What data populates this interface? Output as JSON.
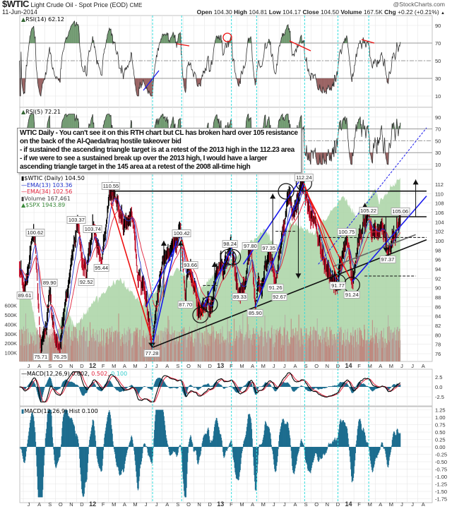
{
  "header": {
    "symbol": "$WTIC",
    "description": "Light Crude Oil - Spot Price (EOD)",
    "exchange": "CME",
    "date": "11-Jun-2014",
    "brand": "@StockCharts.com",
    "quote": {
      "open_label": "Open",
      "open": "104.30",
      "high_label": "High",
      "high": "104.81",
      "low_label": "Low",
      "low": "104.17",
      "close_label": "Close",
      "close": "104.50",
      "volume_label": "Volume",
      "volume": "167.5K",
      "chg_label": "Chg",
      "chg": "+0.22 (+0.21%)",
      "chg_icon": "up-triangle-icon"
    }
  },
  "annotation_note": [
    "WTIC Daily - You can't see it on this RTH chart but CL has broken hard over 105 resistance",
    "on the back of the Al-Qaeda/Iraq hostile takeover bid",
    "- if sustained the ascending triangle target is at a retest of the 2013 high in the 112.23 area",
    "- if we were to see a sustained break up over the 2013 high, I would have a larger",
    "ascending triangle target in the 145 area at a retest of the 2008 all-time high"
  ],
  "legends": {
    "rsi14": "RSI(14) 62.12",
    "rsi5": "RSI(5) 72.21",
    "price": "$WTIC (Daily) 104.50",
    "ema13": "EMA(13) 103.36",
    "ema34": "EMA(34) 102.56",
    "volume": "Volume 167,461",
    "spx": "$SPX 1943.89",
    "macd_name": "MACD(12,26,9) 0.602,",
    "macd_signal": "0.502,",
    "macd_hist": "0.100",
    "hist": "MACD(12,26,9) Hist 0.100"
  },
  "colors": {
    "price": "#000000",
    "ema13": "#2233cc",
    "ema34": "#e0203a",
    "spx_fill": "#a9d4a4",
    "volume": "#c0807a",
    "macd_hist": "#1d6d8f",
    "cyan_marker": "#33dddd",
    "trend_blue": "#1a1aee",
    "trend_red": "#ee1111",
    "rsi_over": "#5a8a5a",
    "rsi_under": "#8a4a4a"
  },
  "chart_data": {
    "type": "line",
    "x_axis": {
      "start": "2011-07-01",
      "months": [
        "J",
        "A",
        "S",
        "O",
        "N",
        "D",
        "12",
        "F",
        "M",
        "A",
        "M",
        "J",
        "J",
        "A",
        "S",
        "O",
        "N",
        "D",
        "13",
        "F",
        "M",
        "A",
        "M",
        "J",
        "J",
        "A",
        "S",
        "O",
        "N",
        "D",
        "14",
        "F",
        "M",
        "A",
        "M",
        "J",
        "J",
        "A"
      ]
    },
    "price_axis": {
      "ticks": [
        "76",
        "78",
        "80",
        "82",
        "84",
        "86",
        "88",
        "90",
        "92",
        "94",
        "96",
        "98",
        "100",
        "102",
        "104",
        "106",
        "108",
        "110",
        "112"
      ],
      "range": [
        76,
        112
      ]
    },
    "volume_axis": {
      "ticks": [
        "100K",
        "200K",
        "300K",
        "400K",
        "500K",
        "600K"
      ]
    },
    "rsi_axis": {
      "ticks": [
        "90",
        "70",
        "50",
        "30",
        "10"
      ]
    },
    "macd_axis": {
      "ticks": [
        "2.5",
        "0.0",
        "-2.5"
      ]
    },
    "hist_axis": {
      "ticks": [
        "1.25",
        "1.00",
        "0.75",
        "0.50",
        "0.25",
        "0.00",
        "-0.25",
        "-0.50",
        "-0.75",
        "-1.00",
        "-1.25",
        "-1.50",
        "-1.75"
      ]
    },
    "price_path": [
      [
        "2011-06-20",
        94
      ],
      [
        "2011-07-05",
        89.61
      ],
      [
        "2011-07-20",
        97
      ],
      [
        "2011-08-04",
        100.62
      ],
      [
        "2011-08-20",
        75.71
      ],
      [
        "2011-09-14",
        89.9
      ],
      [
        "2011-09-28",
        80
      ],
      [
        "2011-10-14",
        76.25
      ],
      [
        "2011-11-30",
        103.37
      ],
      [
        "2011-12-28",
        92.52
      ],
      [
        "2012-01-15",
        103.74
      ],
      [
        "2012-02-09",
        95.44
      ],
      [
        "2012-03-07",
        110.55
      ],
      [
        "2012-04-10",
        104
      ],
      [
        "2012-05-05",
        106
      ],
      [
        "2012-06-01",
        90
      ],
      [
        "2012-07-02",
        77.28
      ],
      [
        "2012-07-28",
        93.24
      ],
      [
        "2012-08-20",
        97
      ],
      [
        "2012-09-25",
        100.42
      ],
      [
        "2012-10-06",
        87.7
      ],
      [
        "2012-10-12",
        93.66
      ],
      [
        "2012-11-18",
        84.5
      ],
      [
        "2012-12-10",
        88
      ],
      [
        "2013-02-10",
        98.24
      ],
      [
        "2013-03-10",
        89.33
      ],
      [
        "2013-04-09",
        97.8
      ],
      [
        "2013-04-23",
        85.9
      ],
      [
        "2013-06-01",
        97.35
      ],
      [
        "2013-06-20",
        91.26
      ],
      [
        "2013-06-25",
        92.67
      ],
      [
        "2013-07-20",
        106
      ],
      [
        "2013-09-09",
        112.24
      ],
      [
        "2013-10-20",
        100
      ],
      [
        "2013-12-15",
        91.77
      ],
      [
        "2014-01-09",
        100.75
      ],
      [
        "2014-01-24",
        91.24
      ],
      [
        "2014-03-12",
        105.22
      ],
      [
        "2014-05-06",
        97.37
      ],
      [
        "2014-06-11",
        105.06
      ]
    ],
    "labeled_points": [
      {
        "date": "2011-07-05",
        "value": "89.61",
        "pos": "below"
      },
      {
        "date": "2011-08-04",
        "value": "100.62",
        "pos": "above"
      },
      {
        "date": "2011-08-20",
        "value": "75.71",
        "pos": "below"
      },
      {
        "date": "2011-09-14",
        "value": "89.90",
        "pos": "above"
      },
      {
        "date": "2011-10-14",
        "value": "76.25",
        "pos": "below"
      },
      {
        "date": "2011-11-30",
        "value": "103.37",
        "pos": "above"
      },
      {
        "date": "2011-12-28",
        "value": "92.52",
        "pos": "below"
      },
      {
        "date": "2012-01-15",
        "value": "103.74",
        "pos": "above"
      },
      {
        "date": "2012-02-09",
        "value": "95.44",
        "pos": "below"
      },
      {
        "date": "2012-03-07",
        "value": "110.55",
        "pos": "above"
      },
      {
        "date": "2012-07-02",
        "value": "77.28",
        "pos": "below"
      },
      {
        "date": "2012-09-25",
        "value": "100.42",
        "pos": "above"
      },
      {
        "date": "2012-10-06",
        "value": "87.70",
        "pos": "below"
      },
      {
        "date": "2012-10-20",
        "value": "93.66",
        "pos": "above"
      },
      {
        "date": "2013-02-10",
        "value": "98.24",
        "pos": "above"
      },
      {
        "date": "2013-03-10",
        "value": "89.33",
        "pos": "below"
      },
      {
        "date": "2013-04-09",
        "value": "97.80",
        "pos": "above"
      },
      {
        "date": "2013-04-23",
        "value": "85.90",
        "pos": "below"
      },
      {
        "date": "2013-06-01",
        "value": "97.35",
        "pos": "above"
      },
      {
        "date": "2013-06-20",
        "value": "91.26",
        "pos": "below"
      },
      {
        "date": "2013-07-01",
        "value": "92.67",
        "pos": "below"
      },
      {
        "date": "2013-09-09",
        "value": "112.24",
        "pos": "above"
      },
      {
        "date": "2013-12-15",
        "value": "91.77",
        "pos": "below"
      },
      {
        "date": "2014-01-09",
        "value": "100.75",
        "pos": "above"
      },
      {
        "date": "2014-01-24",
        "value": "91.24",
        "pos": "below"
      },
      {
        "date": "2014-03-12",
        "value": "105.22",
        "pos": "above"
      },
      {
        "date": "2014-05-06",
        "value": "97.37",
        "pos": "below"
      },
      {
        "date": "2014-06-11",
        "value": "105.06",
        "pos": "above"
      }
    ],
    "spx_path": [
      [
        "2011-06-20",
        1330
      ],
      [
        "2011-07-20",
        1340
      ],
      [
        "2011-08-10",
        1120
      ],
      [
        "2011-10-04",
        1100
      ],
      [
        "2011-10-28",
        1285
      ],
      [
        "2011-11-25",
        1160
      ],
      [
        "2012-01-15",
        1290
      ],
      [
        "2012-04-01",
        1415
      ],
      [
        "2012-06-04",
        1280
      ],
      [
        "2012-09-14",
        1465
      ],
      [
        "2012-11-15",
        1355
      ],
      [
        "2013-01-15",
        1470
      ],
      [
        "2013-05-21",
        1670
      ],
      [
        "2013-06-24",
        1575
      ],
      [
        "2013-08-02",
        1710
      ],
      [
        "2013-10-08",
        1655
      ],
      [
        "2013-12-31",
        1848
      ],
      [
        "2014-02-04",
        1740
      ],
      [
        "2014-04-01",
        1885
      ],
      [
        "2014-04-11",
        1815
      ],
      [
        "2014-06-11",
        1943.89
      ]
    ],
    "lines": [
      {
        "color": "black",
        "from": [
          "2012-03-07",
          110.55
        ],
        "to": [
          "2014-08-25",
          110.55
        ]
      },
      {
        "color": "black",
        "from": [
          "2012-07-02",
          77.28
        ],
        "to": [
          "2014-08-25",
          100.2
        ]
      },
      {
        "color": "gray",
        "from": [
          "2013-12-01",
          94.5
        ],
        "to": [
          "2014-07-25",
          101.3
        ]
      },
      {
        "color": "black",
        "from": [
          "2014-03-12",
          105.1
        ],
        "to": [
          "2014-08-25",
          105.1
        ]
      },
      {
        "color": "blue",
        "from": [
          "2012-07-02",
          77.28
        ],
        "to": [
          "2012-09-10",
          100
        ]
      },
      {
        "color": "blue",
        "from": [
          "2012-06-15",
          86
        ],
        "to": [
          "2012-09-05",
          98.5
        ]
      },
      {
        "color": "blue",
        "from": [
          "2012-11-25",
          86
        ],
        "to": [
          "2013-02-15",
          98.5
        ]
      },
      {
        "color": "blue",
        "from": [
          "2013-04-23",
          85.9
        ],
        "to": [
          "2013-09-09",
          112.24
        ]
      },
      {
        "color": "blue",
        "from": [
          "2013-03-20",
          95
        ],
        "to": [
          "2013-08-25",
          112.5
        ]
      },
      {
        "color": "blue",
        "from": [
          "2014-01-24",
          91.24
        ],
        "to": [
          "2014-08-25",
          109.5
        ]
      },
      {
        "color": "blue",
        "dashed": true,
        "from": [
          "2013-10-20",
          95
        ],
        "to": [
          "2014-08-25",
          124
        ]
      },
      {
        "color": "red",
        "from": [
          "2012-09-25",
          100.4
        ],
        "to": [
          "2012-11-25",
          84
        ]
      },
      {
        "color": "red",
        "from": [
          "2012-03-07",
          108
        ],
        "to": [
          "2012-07-02",
          79
        ]
      },
      {
        "color": "red",
        "from": [
          "2013-09-09",
          112.24
        ],
        "to": [
          "2013-12-15",
          91.77
        ]
      },
      {
        "color": "red",
        "from": [
          "2013-09-15",
          110.5
        ],
        "to": [
          "2014-01-24",
          91.24
        ]
      },
      {
        "color": "black",
        "dashed": true,
        "from": [
          "2014-03-01",
          92.5
        ],
        "to": [
          "2014-07-25",
          92.5
        ]
      },
      {
        "color": "black",
        "dashed": true,
        "from": [
          "2013-06-20",
          102
        ],
        "to": [
          "2013-08-20",
          102
        ]
      },
      {
        "color": "black",
        "dashed": true,
        "from": [
          "2013-10-25",
          100.7
        ],
        "to": [
          "2014-08-25",
          100.7
        ]
      },
      {
        "color": "black",
        "dashed": true,
        "from": [
          "2012-11-25",
          90.5
        ],
        "to": [
          "2013-01-05",
          90.5
        ]
      }
    ],
    "arrows": [
      {
        "date": "2012-08-05",
        "from": 88,
        "to": 100
      },
      {
        "date": "2012-09-22",
        "from": 93.5,
        "to": 100
      },
      {
        "date": "2012-12-28",
        "from": 90,
        "to": 95.5
      },
      {
        "date": "2013-06-12",
        "from": 97.5,
        "to": 110
      },
      {
        "date": "2013-08-24",
        "from": 110,
        "to": 92
      },
      {
        "date": "2014-03-02",
        "from": 101.5,
        "to": 108
      },
      {
        "date": "2014-05-01",
        "from": 105,
        "to": 97.5
      },
      {
        "date": "2014-07-25",
        "from": 105.1,
        "to": 113
      }
    ],
    "circles": [
      [
        "2013-09-09",
        112.24
      ],
      [
        "2013-07-20",
        110.5
      ],
      [
        "2013-12-15",
        91.2
      ],
      [
        "2014-01-24",
        90.6
      ],
      [
        "2012-11-18",
        84.2
      ],
      [
        "2012-12-14",
        86.5
      ],
      [
        "2013-02-05",
        96.5
      ],
      [
        "2013-02-18",
        96.5
      ]
    ],
    "markers": [
      "2012-07-04",
      "2012-09-25",
      "2013-02-14",
      "2013-04-27",
      "2013-09-11",
      "2013-12-15",
      "2014-03-13"
    ]
  }
}
